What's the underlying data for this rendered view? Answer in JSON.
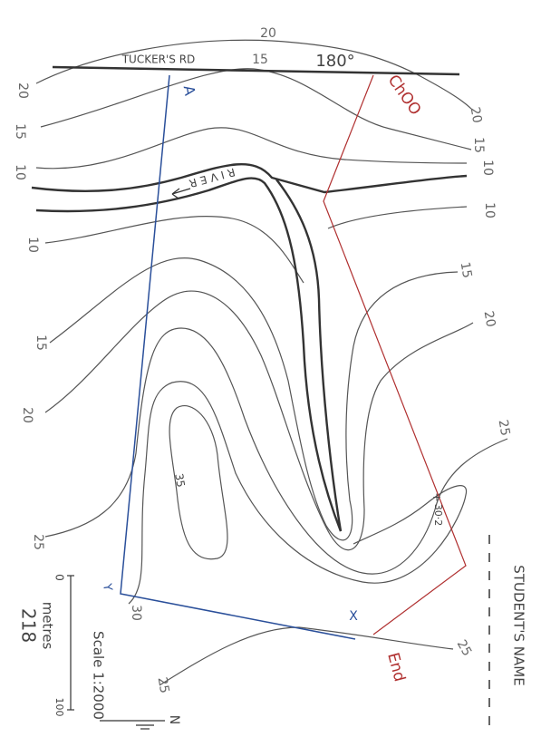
{
  "title": {
    "road": "TUCKER'S RD",
    "bearing": "180°"
  },
  "contour_labels": [
    "20",
    "15",
    "20",
    "15",
    "10",
    "10",
    "15",
    "20",
    "25",
    "20",
    "15",
    "10",
    "10",
    "15",
    "20",
    "25",
    "35",
    "30",
    "25",
    "25"
  ],
  "features": {
    "river": "RIVER",
    "line_a": "A",
    "chainage": "ChOO",
    "end": "End",
    "point_y": "Y",
    "point_x": "X",
    "spot_mark": "+",
    "spot_height": "30·2"
  },
  "footer": {
    "student": "STUDENT'S NAME",
    "scale": "Scale 1:2000",
    "bar_start": "0",
    "bar_unit": "metres",
    "bar_end": "100",
    "page": "218",
    "north": "N"
  }
}
